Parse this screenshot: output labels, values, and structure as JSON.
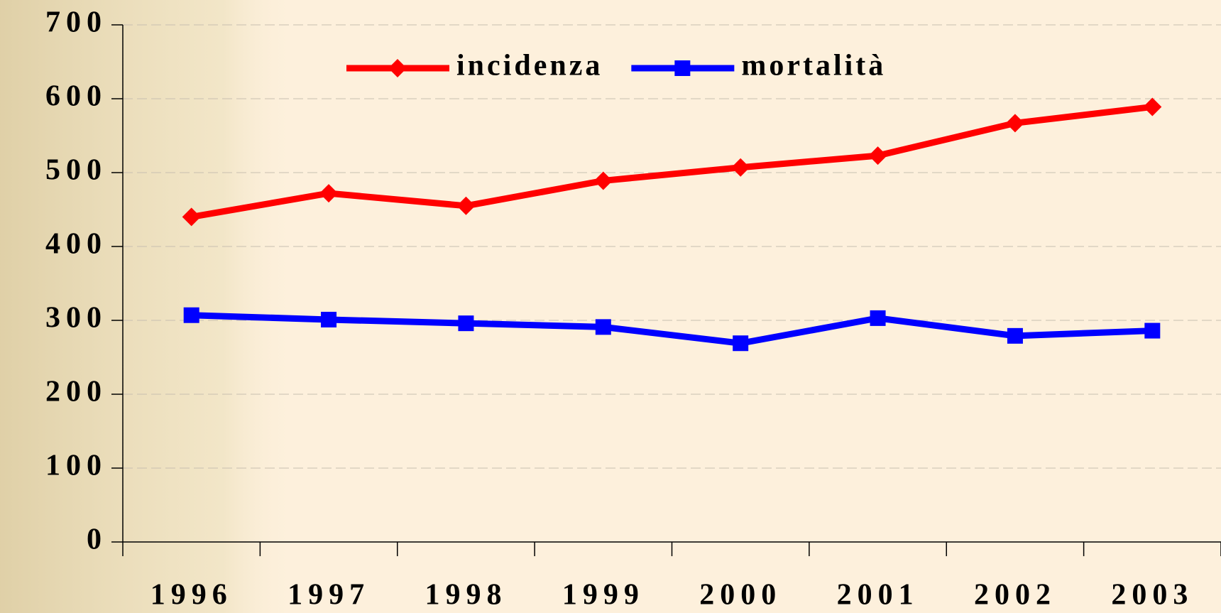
{
  "chart_data": {
    "type": "line",
    "categories": [
      "1996",
      "1997",
      "1998",
      "1999",
      "2000",
      "2001",
      "2002",
      "2003"
    ],
    "series": [
      {
        "name": "incidenza",
        "color": "#ff0000",
        "marker": "diamond",
        "values": [
          440,
          472,
          455,
          489,
          507,
          523,
          567,
          589
        ]
      },
      {
        "name": "mortalità",
        "color": "#0000ff",
        "marker": "square",
        "values": [
          307,
          301,
          296,
          291,
          269,
          303,
          279,
          286
        ]
      }
    ],
    "ylim": [
      0,
      700
    ],
    "yticks": [
      0,
      100,
      200,
      300,
      400,
      500,
      600,
      700
    ],
    "grid": true,
    "legend": "top"
  }
}
